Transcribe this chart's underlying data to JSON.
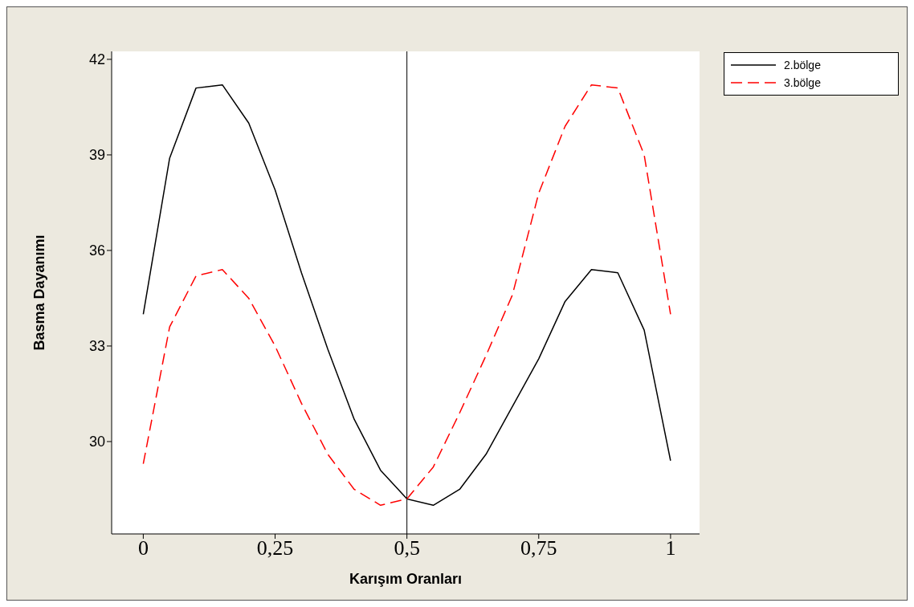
{
  "chart_data": {
    "type": "line",
    "xlabel": "Karışım Oranları",
    "ylabel": "Basma Dayanımı",
    "x": [
      0,
      0.05,
      0.1,
      0.15,
      0.2,
      0.25,
      0.3,
      0.35,
      0.4,
      0.45,
      0.5,
      0.55,
      0.6,
      0.65,
      0.7,
      0.75,
      0.8,
      0.85,
      0.9,
      0.95,
      1
    ],
    "series": [
      {
        "name": "2.bölge",
        "color": "#000000",
        "line_style": "solid",
        "values": [
          34.0,
          38.9,
          41.1,
          41.2,
          40.0,
          37.9,
          35.3,
          32.9,
          30.7,
          29.1,
          28.2,
          28.0,
          28.5,
          29.6,
          31.1,
          32.6,
          34.4,
          35.4,
          35.3,
          33.5,
          29.4
        ]
      },
      {
        "name": "3.bölge",
        "color": "#ff0000",
        "line_style": "dashed",
        "values": [
          29.3,
          33.6,
          35.2,
          35.4,
          34.5,
          33.0,
          31.2,
          29.6,
          28.5,
          28.0,
          28.2,
          29.2,
          30.9,
          32.7,
          34.6,
          37.8,
          39.9,
          41.2,
          41.1,
          39.0,
          34.0
        ]
      }
    ],
    "xlim": [
      -0.06,
      1.055
    ],
    "ylim": [
      27.1,
      42.25
    ],
    "xticks": [
      0,
      {
        "value": 0.25,
        "label": "0,25"
      },
      {
        "value": 0.5,
        "label": "0,5"
      },
      {
        "value": 0.75,
        "label": "0,75"
      },
      1
    ],
    "yticks": [
      30,
      33,
      36,
      39,
      42
    ],
    "ref_lines": [
      {
        "axis": "x",
        "value": 0.5,
        "color": "#000000"
      }
    ],
    "grid": false,
    "legend": "top right",
    "marker": "none"
  }
}
